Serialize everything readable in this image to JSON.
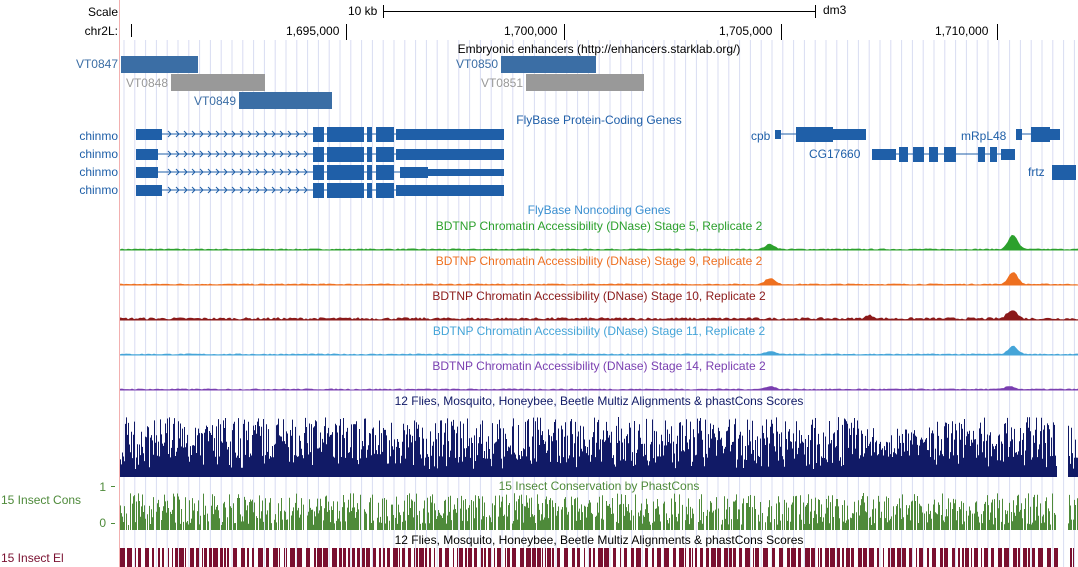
{
  "ruler": {
    "scale_label": "Scale",
    "chrom_label": "chr2L:",
    "scale_bar_label": "10 kb",
    "assembly": "dm3",
    "ticks": [
      "1,695,000",
      "1,700,000",
      "1,705,000",
      "1,710,000"
    ]
  },
  "tracks": {
    "enhancers": {
      "title": "Embryonic enhancers (http://enhancers.starklab.org/)",
      "items": [
        {
          "name": "VT0847",
          "color": "#3b6ea5"
        },
        {
          "name": "VT0848",
          "color": "#999999"
        },
        {
          "name": "VT0849",
          "color": "#3b6ea5"
        },
        {
          "name": "VT0850",
          "color": "#3b6ea5"
        },
        {
          "name": "VT0851",
          "color": "#999999"
        }
      ]
    },
    "protein_genes": {
      "title": "FlyBase Protein-Coding Genes",
      "color": "#1f5fa8",
      "chinmo_labels": [
        "chinmo",
        "chinmo",
        "chinmo",
        "chinmo"
      ],
      "other_genes": [
        "cpb",
        "CG17660",
        "mRpL48",
        "frtz"
      ]
    },
    "noncoding": {
      "title": "FlyBase Noncoding Genes",
      "color": "#3a8fd0"
    },
    "dnase": [
      {
        "title": "BDTNP Chromatin Accessibility (DNase) Stage 5, Replicate 2",
        "color": "#2ca02c"
      },
      {
        "title": "BDTNP Chromatin Accessibility (DNase) Stage 9, Replicate 2",
        "color": "#ee7020"
      },
      {
        "title": "BDTNP Chromatin Accessibility (DNase) Stage 10, Replicate 2",
        "color": "#8b1a1a"
      },
      {
        "title": "BDTNP Chromatin Accessibility (DNase) Stage 11, Replicate 2",
        "color": "#45a5d8"
      },
      {
        "title": "BDTNP Chromatin Accessibility (DNase) Stage 14, Replicate 2",
        "color": "#7a3fb0"
      }
    ],
    "multiz": {
      "title": "12 Flies, Mosquito, Honeybee, Beetle Multiz Alignments & phastCons Scores",
      "color": "#111a66"
    },
    "cons": {
      "title": "15 Insect Conservation by PhastCons",
      "side_label": "15 Insect Cons",
      "axis_top": "1",
      "axis_bottom": "0",
      "color": "#4e8a3a"
    },
    "elements": {
      "title": "12 Flies, Mosquito, Honeybee, Beetle Multiz Alignments & phastCons Scores",
      "side_label": "15 Insect El",
      "color": "#7a1030"
    }
  }
}
